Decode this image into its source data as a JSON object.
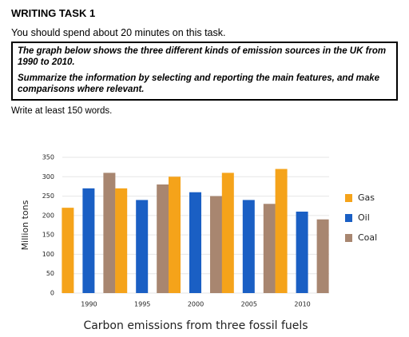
{
  "header": {
    "title": "WRITING TASK 1",
    "time_note": "You should spend about 20 minutes on this task.",
    "prompt": [
      "The graph below shows the three different kinds of emission sources in the UK from 1990 to 2010.",
      "Summarize the information by selecting and reporting the main features, and make comparisons where relevant."
    ],
    "word_note": "Write at least 150 words."
  },
  "chart_data": {
    "type": "bar",
    "x_label": "Carbon emissions from three fossil fuels",
    "y_label": "Million tons",
    "categories": [
      "1990",
      "1995",
      "2000",
      "2005",
      "2010"
    ],
    "series": [
      {
        "name": "Gas",
        "color": "#f5a31a",
        "values": [
          220,
          270,
          300,
          310,
          320
        ]
      },
      {
        "name": "Oil",
        "color": "#1a5fc4",
        "values": [
          270,
          240,
          260,
          240,
          210
        ]
      },
      {
        "name": "Coal",
        "color": "#a88670",
        "values": [
          310,
          280,
          250,
          230,
          190
        ]
      }
    ],
    "ylim": [
      0,
      350
    ],
    "yticks": [
      0,
      50,
      100,
      150,
      200,
      250,
      300,
      350
    ],
    "grid": true,
    "legend": "right"
  }
}
